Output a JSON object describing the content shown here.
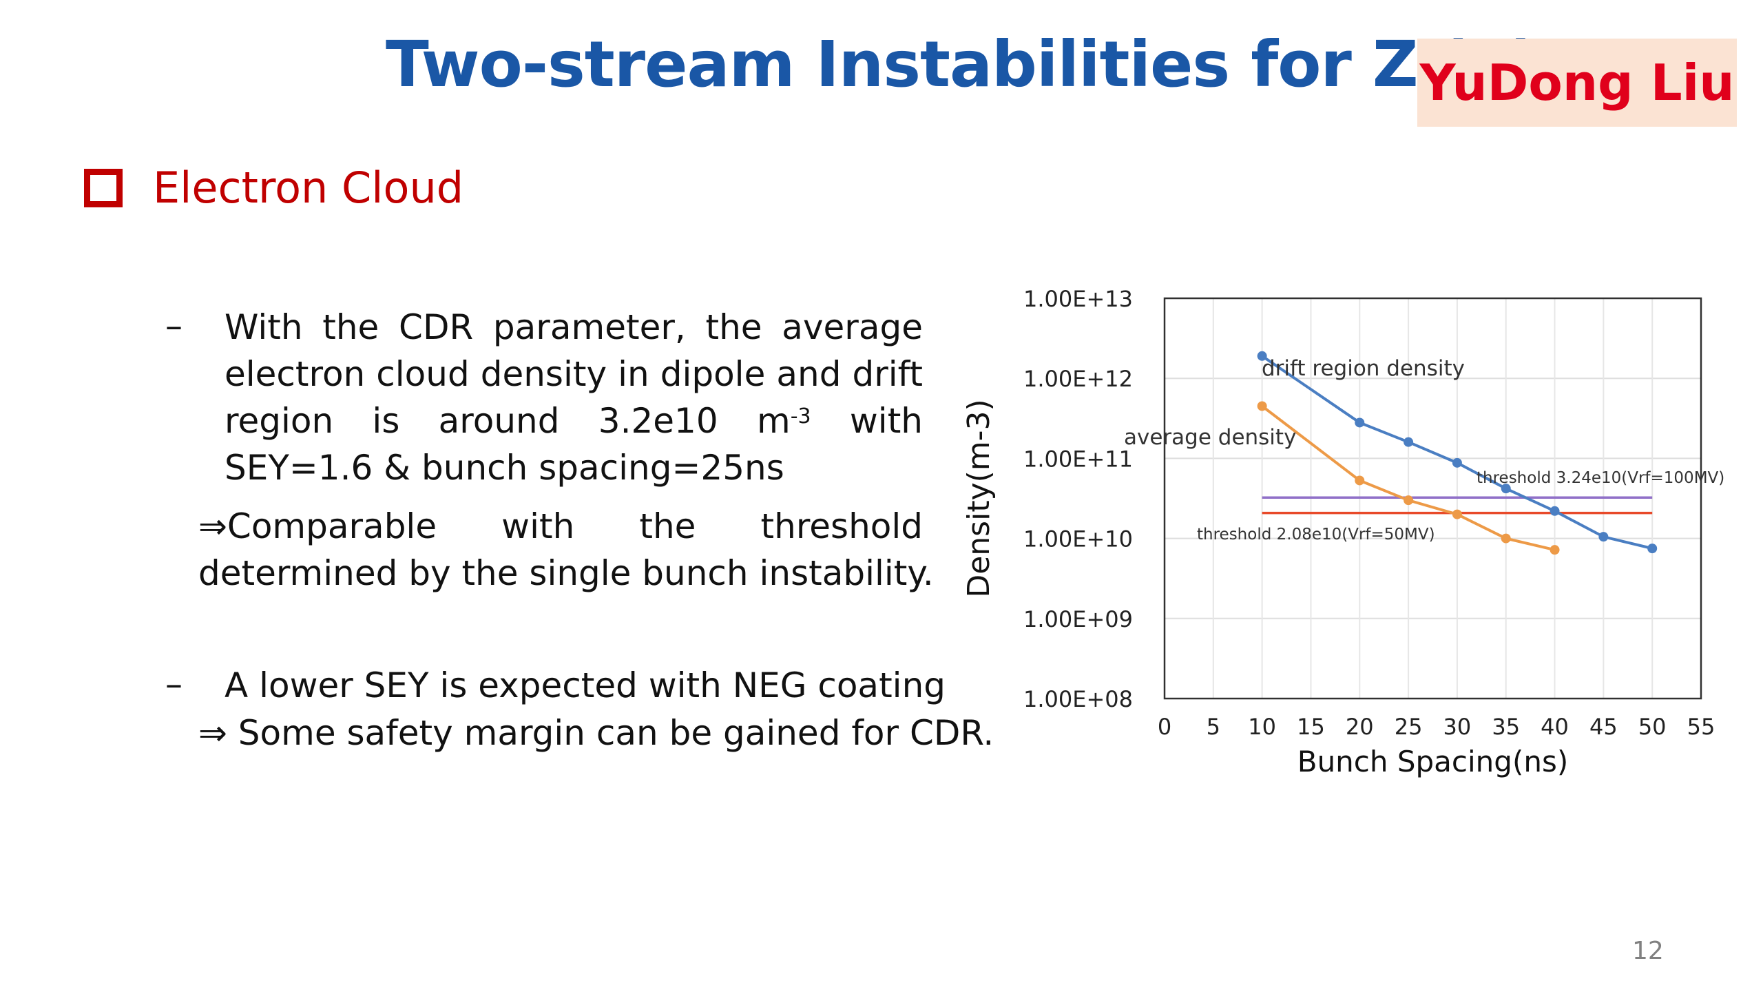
{
  "slide": {
    "title": "Two-stream Instabilities for Z (2)",
    "author": "YuDong Liu",
    "page_number": "12"
  },
  "section": {
    "icon": "square-bullet-icon",
    "label": "Electron Cloud"
  },
  "bullets": [
    {
      "dash": "–",
      "text_before_sup": "With the CDR parameter, the average electron cloud density in dipole and drift region is around 3.2e10 m",
      "sup": "-3",
      "text_after_sup": " with SEY=1.6 & bunch spacing=25ns",
      "arrow": "⇒",
      "sub_line1": "Comparable with the threshold",
      "sub_line2": "determined by the single bunch instability."
    },
    {
      "dash": "–",
      "text": "A lower SEY is expected with NEG coating",
      "arrow": "⇒",
      "sub": " Some safety margin can be gained for CDR."
    }
  ],
  "chart_data": {
    "type": "line",
    "xlabel": "Bunch Spacing(ns)",
    "ylabel": "Density(m-3)",
    "x_ticks": [
      0,
      5,
      10,
      15,
      20,
      25,
      30,
      35,
      40,
      45,
      50,
      55
    ],
    "xlim": [
      0,
      55
    ],
    "y_scale": "log",
    "ylim": [
      100000000.0,
      10000000000000.0
    ],
    "y_tick_values": [
      100000000.0,
      1000000000.0,
      10000000000.0,
      100000000000.0,
      1000000000000.0,
      10000000000000.0
    ],
    "y_tick_labels": [
      "1.00E+08",
      "1.00E+09",
      "1.00E+10",
      "1.00E+11",
      "1.00E+12",
      "1.00E+13"
    ],
    "grid": true,
    "series": [
      {
        "name": "drift region density",
        "color": "#4a7ec2",
        "x": [
          10,
          20,
          25,
          30,
          35,
          40,
          45,
          50
        ],
        "y": [
          1900000000000.0,
          280000000000.0,
          160000000000.0,
          88000000000.0,
          42000000000.0,
          22000000000.0,
          10500000000.0,
          7500000000.0
        ]
      },
      {
        "name": "average density",
        "color": "#ed9a47",
        "x": [
          10,
          20,
          25,
          30,
          35,
          40
        ],
        "y": [
          450000000000.0,
          53000000000.0,
          30000000000.0,
          20000000000.0,
          10000000000.0,
          7200000000.0
        ]
      }
    ],
    "thresholds": [
      {
        "label": "threshold 3.24e10(Vrf=100MV)",
        "value": 32400000000.0,
        "x_range": [
          10,
          50
        ],
        "color": "#9070c8"
      },
      {
        "label": "threshold 2.08e10(Vrf=50MV)",
        "value": 20800000000.0,
        "x_range": [
          10,
          50
        ],
        "color": "#e84a2a"
      }
    ]
  }
}
